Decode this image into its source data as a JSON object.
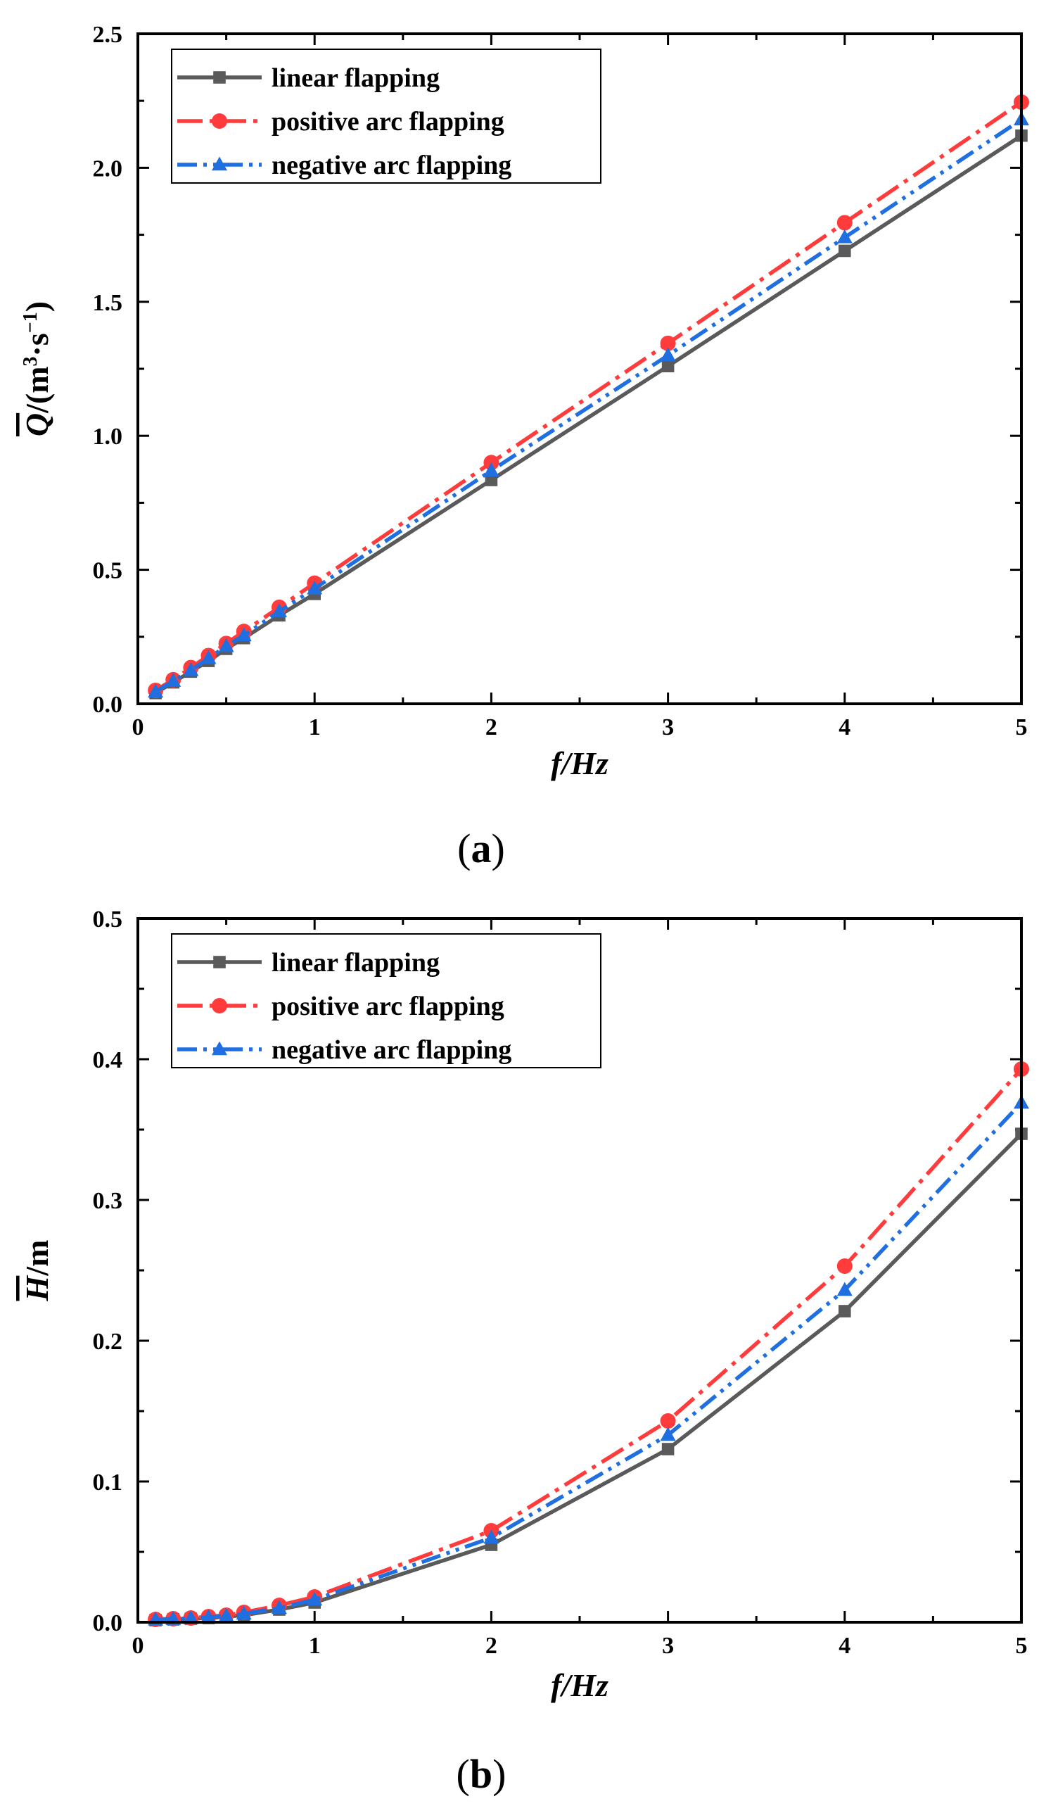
{
  "chart_data": [
    {
      "type": "line",
      "panel_label": "a",
      "xlabel": "f/Hz",
      "ylabel": "Q̄/(m³·s⁻¹)",
      "ylabel_symbol": "Q",
      "ylabel_unit": "/(m",
      "ylabel_sup1": "3",
      "ylabel_mid": "·s",
      "ylabel_sup2": "−1",
      "ylabel_close": ")",
      "xlim": [
        0,
        5
      ],
      "ylim": [
        0,
        2.5
      ],
      "x_ticks": [
        0,
        1,
        2,
        3,
        4,
        5
      ],
      "x_tick_labels": [
        "0",
        "1",
        "2",
        "3",
        "4",
        "5"
      ],
      "y_ticks": [
        0,
        0.5,
        1.0,
        1.5,
        2.0,
        2.5
      ],
      "y_tick_labels": [
        "0.0",
        "0.5",
        "1.0",
        "1.5",
        "2.0",
        "2.5"
      ],
      "legend_position": "top-left",
      "x": [
        0.1,
        0.2,
        0.3,
        0.4,
        0.5,
        0.6,
        0.8,
        1,
        2,
        3,
        4,
        5
      ],
      "series": [
        {
          "name": "linear flapping",
          "color": "#5a5a5a",
          "marker": "square",
          "dash": "solid",
          "values": [
            0.04,
            0.08,
            0.12,
            0.16,
            0.205,
            0.245,
            0.33,
            0.41,
            0.835,
            1.26,
            1.69,
            2.12
          ]
        },
        {
          "name": "positive arc flapping",
          "color": "#ff3b3b",
          "marker": "circle",
          "dash": "dashdot",
          "values": [
            0.05,
            0.09,
            0.135,
            0.18,
            0.225,
            0.27,
            0.36,
            0.45,
            0.9,
            1.345,
            1.795,
            2.245
          ]
        },
        {
          "name": "negative arc flapping",
          "color": "#1f6fe0",
          "marker": "triangle",
          "dash": "dashdotdot",
          "values": [
            0.045,
            0.085,
            0.125,
            0.17,
            0.215,
            0.255,
            0.345,
            0.43,
            0.87,
            1.3,
            1.74,
            2.18
          ]
        }
      ]
    },
    {
      "type": "line",
      "panel_label": "b",
      "xlabel": "f/Hz",
      "ylabel": "H̄/m",
      "ylabel_symbol": "H",
      "ylabel_unit": "/m",
      "xlim": [
        0,
        5
      ],
      "ylim": [
        0,
        0.5
      ],
      "x_ticks": [
        0,
        1,
        2,
        3,
        4,
        5
      ],
      "x_tick_labels": [
        "0",
        "1",
        "2",
        "3",
        "4",
        "5"
      ],
      "y_ticks": [
        0,
        0.1,
        0.2,
        0.3,
        0.4,
        0.5
      ],
      "y_tick_labels": [
        "0.0",
        "0.1",
        "0.2",
        "0.3",
        "0.4",
        "0.5"
      ],
      "legend_position": "top-left",
      "x": [
        0.1,
        0.2,
        0.3,
        0.4,
        0.5,
        0.6,
        0.8,
        1,
        2,
        3,
        4,
        5
      ],
      "series": [
        {
          "name": "linear flapping",
          "color": "#5a5a5a",
          "marker": "square",
          "dash": "solid",
          "values": [
            0.0015,
            0.002,
            0.0025,
            0.003,
            0.004,
            0.005,
            0.009,
            0.014,
            0.055,
            0.123,
            0.221,
            0.347
          ]
        },
        {
          "name": "positive arc flapping",
          "color": "#ff3b3b",
          "marker": "circle",
          "dash": "dashdot",
          "values": [
            0.002,
            0.0025,
            0.003,
            0.004,
            0.005,
            0.007,
            0.012,
            0.018,
            0.065,
            0.143,
            0.253,
            0.393
          ]
        },
        {
          "name": "negative arc flapping",
          "color": "#1f6fe0",
          "marker": "triangle",
          "dash": "dashdotdot",
          "values": [
            0.0018,
            0.0022,
            0.0028,
            0.0035,
            0.0045,
            0.006,
            0.01,
            0.016,
            0.06,
            0.133,
            0.236,
            0.369
          ]
        }
      ]
    }
  ]
}
